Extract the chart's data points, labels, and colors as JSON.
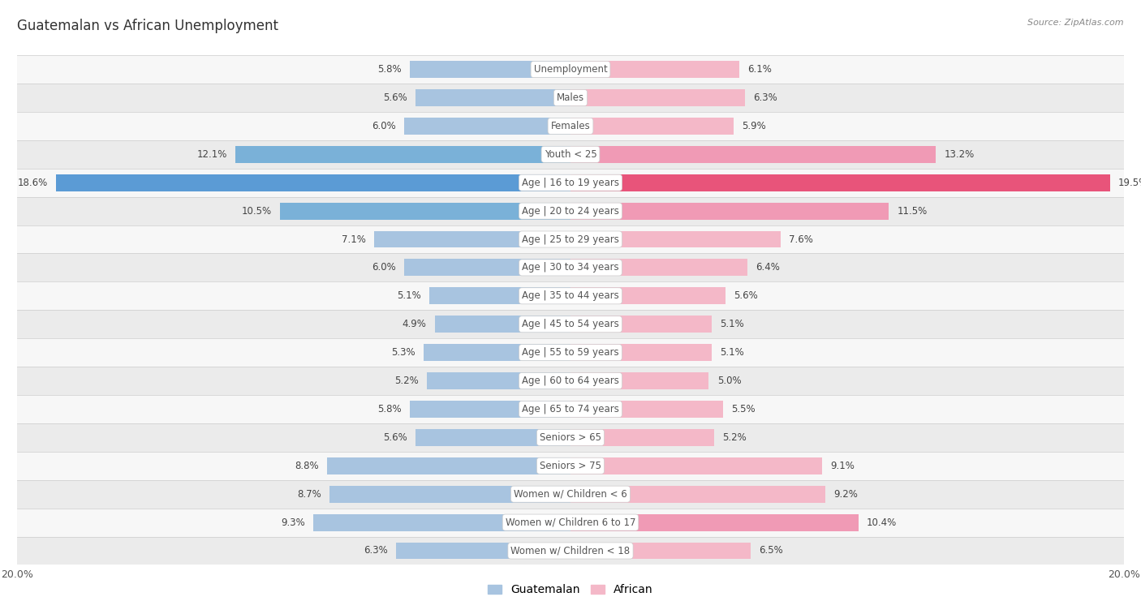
{
  "title": "Guatemalan vs African Unemployment",
  "source": "Source: ZipAtlas.com",
  "categories": [
    "Unemployment",
    "Males",
    "Females",
    "Youth < 25",
    "Age | 16 to 19 years",
    "Age | 20 to 24 years",
    "Age | 25 to 29 years",
    "Age | 30 to 34 years",
    "Age | 35 to 44 years",
    "Age | 45 to 54 years",
    "Age | 55 to 59 years",
    "Age | 60 to 64 years",
    "Age | 65 to 74 years",
    "Seniors > 65",
    "Seniors > 75",
    "Women w/ Children < 6",
    "Women w/ Children 6 to 17",
    "Women w/ Children < 18"
  ],
  "guatemalan": [
    5.8,
    5.6,
    6.0,
    12.1,
    18.6,
    10.5,
    7.1,
    6.0,
    5.1,
    4.9,
    5.3,
    5.2,
    5.8,
    5.6,
    8.8,
    8.7,
    9.3,
    6.3
  ],
  "african": [
    6.1,
    6.3,
    5.9,
    13.2,
    19.5,
    11.5,
    7.6,
    6.4,
    5.6,
    5.1,
    5.1,
    5.0,
    5.5,
    5.2,
    9.1,
    9.2,
    10.4,
    6.5
  ],
  "guatemalan_color_normal": "#a8c4e0",
  "guatemalan_color_highlight": "#5b9bd5",
  "african_color_normal": "#f4b8c8",
  "african_color_highlight": "#e8547a",
  "row_bg_dark": "#ebebeb",
  "row_bg_light": "#f7f7f7",
  "separator_color": "#cccccc",
  "max_val": 20.0,
  "legend_guatemalan": "Guatemalan",
  "legend_african": "African",
  "title_color": "#333333",
  "source_color": "#888888",
  "label_color": "#555555",
  "value_color": "#444444"
}
